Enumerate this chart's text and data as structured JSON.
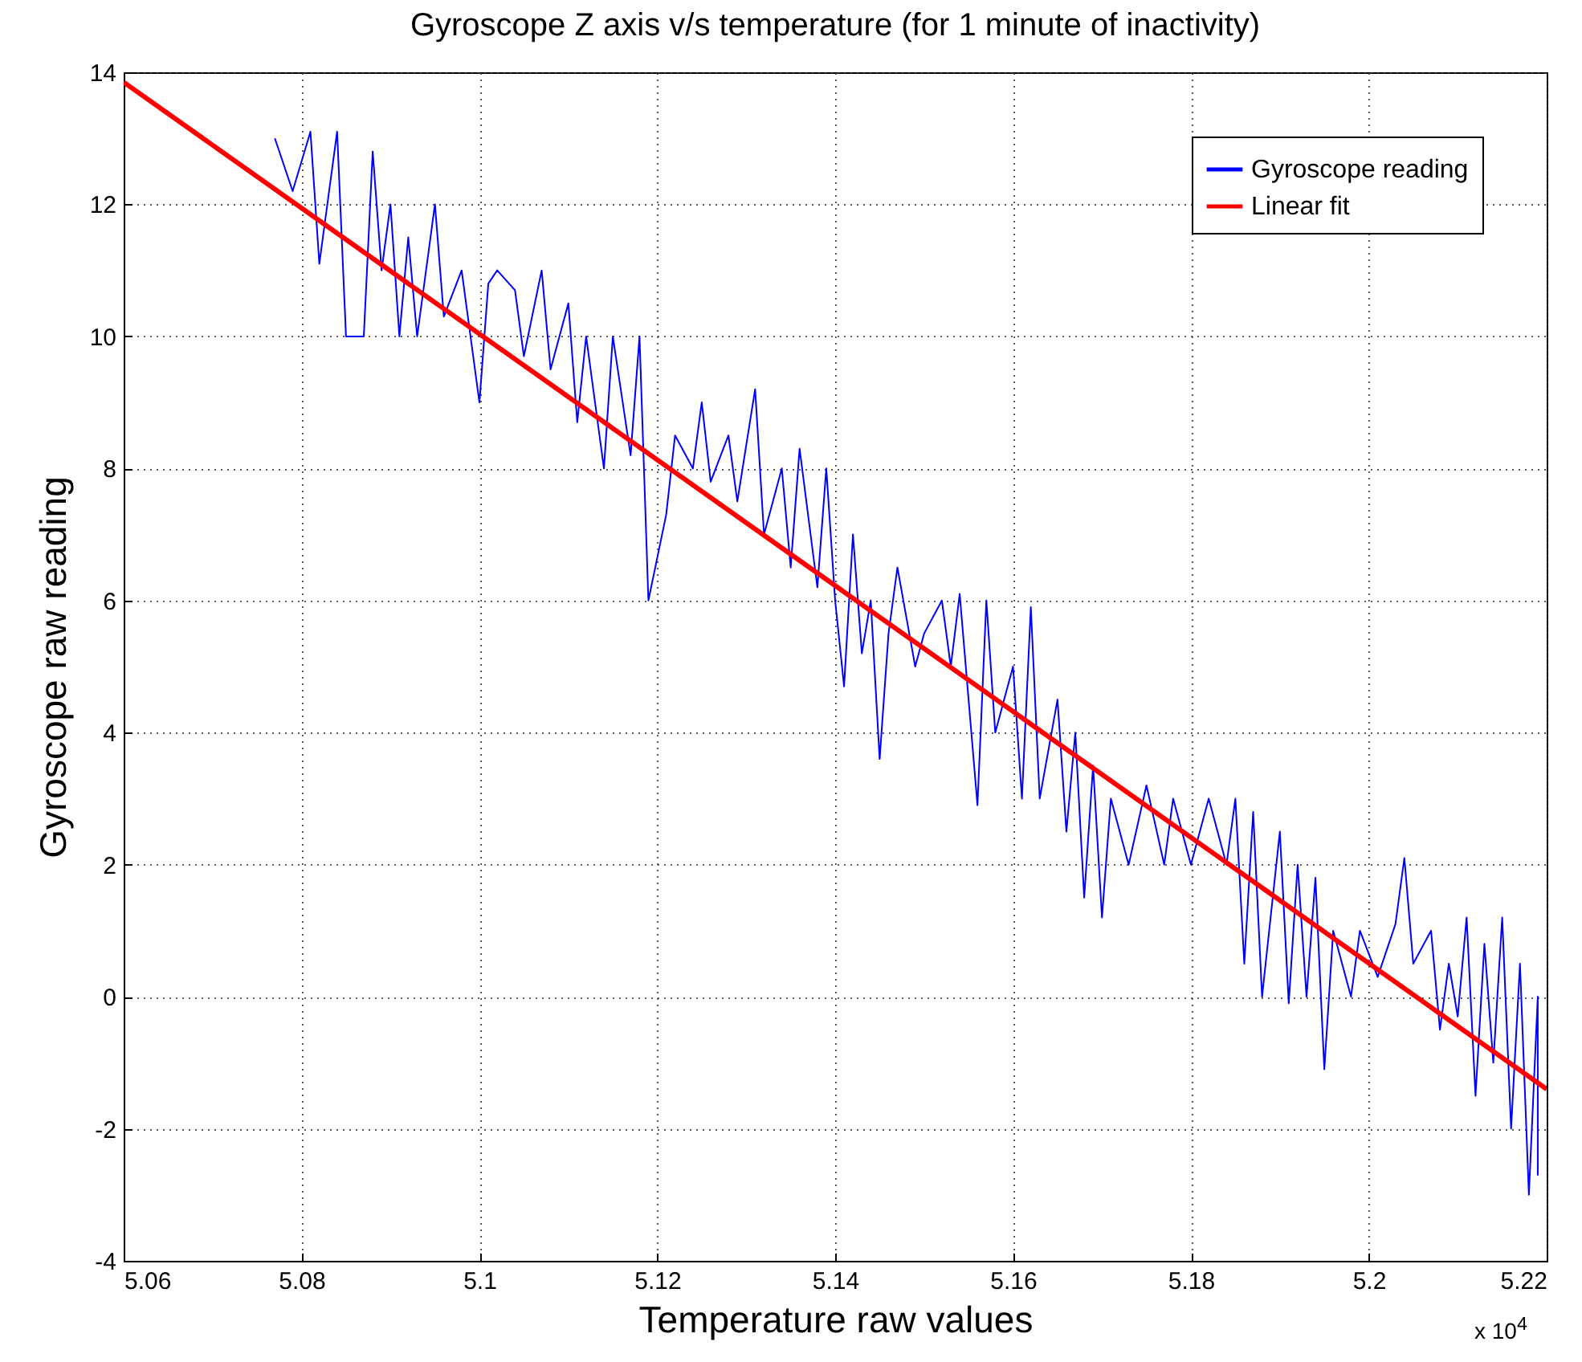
{
  "chart_data": {
    "type": "line",
    "title": "Gyroscope Z axis v/s temperature (for 1 minute of inactivity)",
    "xlabel": "Temperature raw values",
    "ylabel": "Gyroscope raw reading",
    "annotations": [
      "x 10$^{4}$"
    ],
    "xlim": [
      5.06,
      5.22
    ],
    "xticks": [
      5.06,
      5.08,
      5.1,
      5.12,
      5.14,
      5.16,
      5.18,
      5.2,
      5.22
    ],
    "ylim": [
      -4,
      14
    ],
    "yticks": [
      -4,
      -2,
      0,
      2,
      4,
      6,
      8,
      10,
      12,
      14
    ],
    "grid": true,
    "legend": "top right",
    "marker": "none",
    "line_style": "solid",
    "series": [
      {
        "name": "Gyroscope reading",
        "color": "#0000ff",
        "x": [
          5.077,
          5.079,
          5.081,
          5.082,
          5.083,
          5.084,
          5.085,
          5.087,
          5.088,
          5.089,
          5.09,
          5.091,
          5.092,
          5.093,
          5.095,
          5.096,
          5.098,
          5.1,
          5.101,
          5.102,
          5.104,
          5.105,
          5.107,
          5.108,
          5.11,
          5.111,
          5.112,
          5.114,
          5.115,
          5.117,
          5.118,
          5.119,
          5.121,
          5.122,
          5.124,
          5.125,
          5.126,
          5.128,
          5.129,
          5.131,
          5.132,
          5.134,
          5.135,
          5.136,
          5.138,
          5.139,
          5.14,
          5.141,
          5.142,
          5.143,
          5.144,
          5.145,
          5.146,
          5.147,
          5.149,
          5.15,
          5.152,
          5.153,
          5.154,
          5.155,
          5.156,
          5.157,
          5.158,
          5.16,
          5.161,
          5.162,
          5.163,
          5.165,
          5.166,
          5.167,
          5.168,
          5.169,
          5.17,
          5.171,
          5.173,
          5.175,
          5.177,
          5.178,
          5.18,
          5.182,
          5.184,
          5.185,
          5.186,
          5.187,
          5.188,
          5.19,
          5.191,
          5.192,
          5.193,
          5.194,
          5.195,
          5.196,
          5.198,
          5.199,
          5.201,
          5.203,
          5.204,
          5.205,
          5.207,
          5.208,
          5.209,
          5.21,
          5.211,
          5.212,
          5.213,
          5.214,
          5.215,
          5.216,
          5.217,
          5.218,
          5.219,
          5.219,
          5.219
        ],
        "values": [
          13,
          12.2,
          13.1,
          11.1,
          12.1,
          13.1,
          10,
          10,
          12.8,
          11,
          12,
          10,
          11.5,
          10,
          12,
          10.3,
          11,
          9,
          10.8,
          11,
          10.7,
          9.7,
          11,
          9.5,
          10.5,
          8.7,
          10,
          8,
          10,
          8.2,
          10,
          6,
          7.3,
          8.5,
          8,
          9,
          7.8,
          8.5,
          7.5,
          9.2,
          7,
          8,
          6.5,
          8.3,
          6.2,
          8,
          6,
          4.7,
          7,
          5.2,
          6,
          3.6,
          5.5,
          6.5,
          5,
          5.5,
          6,
          5,
          6.1,
          4.5,
          2.9,
          6,
          4,
          5,
          3,
          5.9,
          3,
          4.5,
          2.5,
          4,
          1.5,
          3.5,
          1.2,
          3,
          2,
          3.2,
          2,
          3,
          2,
          3,
          2,
          3,
          0.5,
          2.8,
          0,
          2.5,
          -0.1,
          2,
          0,
          1.8,
          -1.1,
          1,
          0,
          1,
          0.3,
          1.1,
          2.1,
          0.5,
          1,
          -0.5,
          0.5,
          -0.3,
          1.2,
          -1.5,
          0.8,
          -1,
          1.2,
          -2,
          0.5,
          -3,
          0,
          -2.7,
          -1
        ]
      },
      {
        "name": " Linear fit",
        "color": "#ff0000",
        "x": [
          5.06,
          5.22
        ],
        "values": [
          13.85,
          -1.4
        ]
      }
    ]
  }
}
